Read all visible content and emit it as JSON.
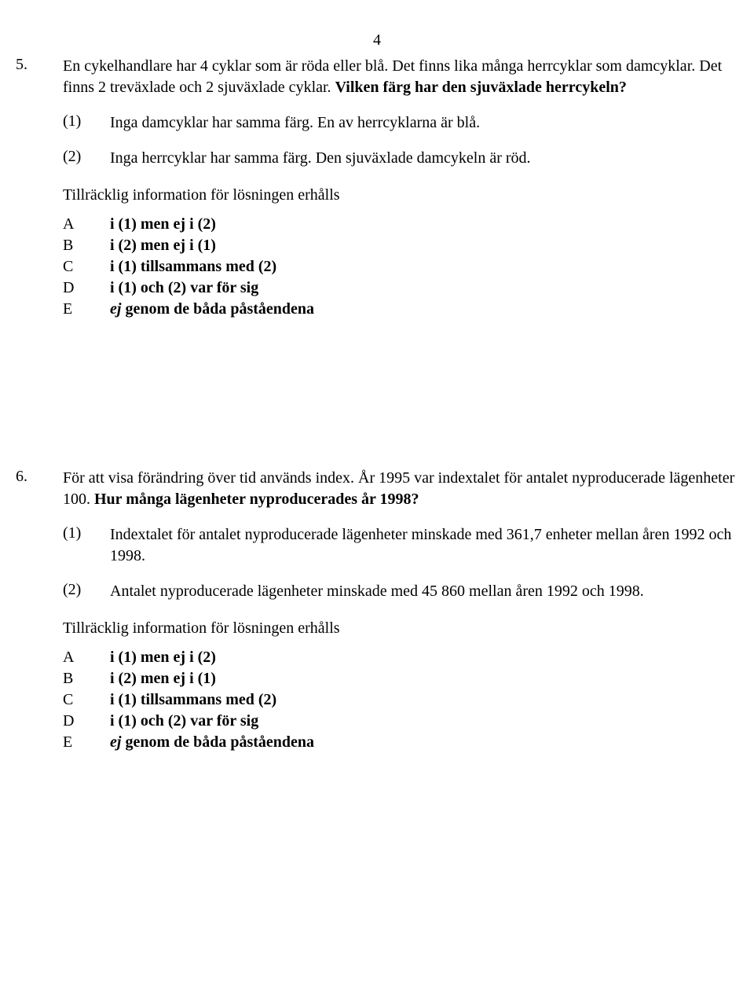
{
  "page_number": "4",
  "questions": [
    {
      "number": "5.",
      "prompt_plain": "En cykelhandlare har 4 cyklar som är röda eller blå. Det finns lika många herrcyklar som damcyklar. Det finns 2 treväxlade och 2 sjuväxlade cyklar. ",
      "prompt_bold": "Vilken färg har den sjuväxlade herrcykeln?",
      "statements": [
        {
          "label": "(1)",
          "text": "Inga damcyklar har samma färg. En av herrcyklarna är blå."
        },
        {
          "label": "(2)",
          "text": "Inga herrcyklar har samma färg. Den sjuväxlade damcykeln är röd."
        }
      ]
    },
    {
      "number": "6.",
      "prompt_plain": "För att visa förändring över tid används index. År 1995 var indextalet för antalet nyproducerade lägenheter 100. ",
      "prompt_bold": "Hur många lägenheter nyproducerades år 1998?",
      "statements": [
        {
          "label": "(1)",
          "text": "Indextalet för antalet nyproducerade lägenheter minskade med 361,7 enheter mellan åren 1992 och 1998."
        },
        {
          "label": "(2)",
          "text": "Antalet nyproducerade lägenheter minskade med 45 860 mellan åren 1992 och 1998."
        }
      ]
    }
  ],
  "sufficiency_text": "Tillräcklig information för lösningen erhålls",
  "answers": [
    {
      "label": "A",
      "text": "i (1) men ej i (2)"
    },
    {
      "label": "B",
      "text": "i (2) men ej i (1)"
    },
    {
      "label": "C",
      "text": "i (1) tillsammans med (2)"
    },
    {
      "label": "D",
      "text": "i (1) och (2) var för sig"
    },
    {
      "label": "E",
      "italic_prefix": "ej",
      "rest": " genom de båda påståendena"
    }
  ]
}
